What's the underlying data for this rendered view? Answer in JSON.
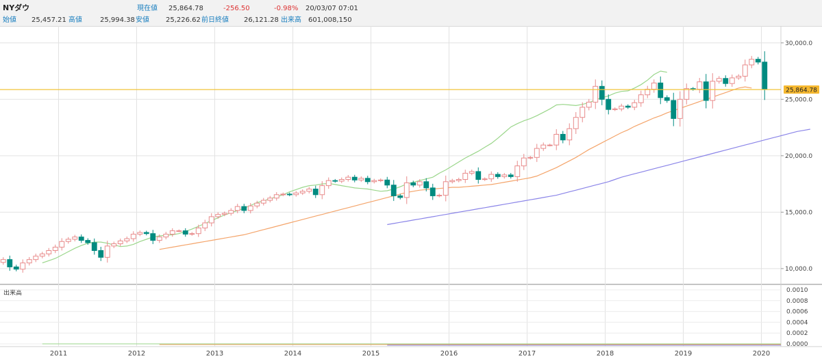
{
  "header": {
    "title": "NYダウ",
    "current_label": "現在値",
    "current_value": "25,864.78",
    "change": "-256.50",
    "change_pct": "-0.98%",
    "datetime": "20/03/07  07:01",
    "open_label": "始値",
    "open_value": "25,457.21",
    "high_label": "高値",
    "high_value": "25,994.38",
    "low_label": "安値",
    "low_value": "25,226.62",
    "prev_close_label": "前日終値",
    "prev_close_value": "26,121.28",
    "volume_label": "出来高",
    "volume_value": "601,008,150"
  },
  "colors": {
    "up": "#e88a8a",
    "down": "#008b80",
    "ma_short": "#9ad68a",
    "ma_mid": "#f4a46a",
    "ma_long": "#8a84e8",
    "current_line": "#f0c43a",
    "current_badge": "#f5b830"
  },
  "chart_data": {
    "type": "candlestick",
    "y_tick_labels": [
      "30,000.0",
      "25,000.0",
      "20,000.0",
      "15,000.0",
      "10,000.0"
    ],
    "y_ticks": [
      30000,
      25000,
      20000,
      15000,
      10000
    ],
    "ylim": [
      8600,
      31500
    ],
    "current_price": 25864.78,
    "current_price_label": "25,864.78",
    "x_tick_labels": [
      "2011",
      "2012",
      "2013",
      "2014",
      "2015",
      "2016",
      "2017",
      "2018",
      "2019",
      "2020"
    ],
    "x_ticks": [
      2011,
      2012,
      2013,
      2014,
      2015,
      2016,
      2017,
      2018,
      2019,
      2020
    ],
    "x_range": [
      2010.25,
      2020.25
    ],
    "volume_label": "出来高",
    "volume_tick_labels": [
      "0.0010",
      "0.0008",
      "0.0006",
      "0.0004",
      "0.0002",
      "0.0000"
    ],
    "volume_ticks": [
      0.001,
      0.0008,
      0.0006,
      0.0004,
      0.0002,
      0.0
    ],
    "closes": [
      10800,
      10150,
      9950,
      10500,
      10800,
      11100,
      11300,
      11600,
      11900,
      12400,
      12600,
      12800,
      12500,
      12300,
      11600,
      11000,
      12000,
      12200,
      12450,
      12650,
      13050,
      13200,
      13100,
      12500,
      12800,
      13050,
      13350,
      13350,
      13050,
      13100,
      13600,
      14050,
      14600,
      14800,
      14900,
      15150,
      15500,
      15150,
      15550,
      15800,
      16050,
      16250,
      16550,
      16600,
      16550,
      16700,
      16850,
      17050,
      16550,
      17350,
      17800,
      17750,
      17900,
      18100,
      17850,
      18000,
      17700,
      17800,
      17850,
      17400,
      16450,
      16300,
      17600,
      17400,
      17700,
      17150,
      16450,
      16500,
      17700,
      17800,
      17900,
      18450,
      18600,
      17900,
      17950,
      18350,
      18150,
      18300,
      18150,
      19100,
      19800,
      19850,
      20650,
      20950,
      20950,
      21900,
      21400,
      22400,
      23400,
      24300,
      24750,
      26150,
      25000,
      24100,
      24150,
      24400,
      24300,
      24700,
      25400,
      25900,
      26450,
      25150,
      24900,
      23300,
      25000,
      25950,
      25900,
      26550,
      24900,
      26600,
      26850,
      26400,
      26900,
      27050,
      28050,
      28550,
      28300,
      25900
    ],
    "ma_short": {
      "start": 6,
      "values": [
        10500,
        10700,
        10900,
        11200,
        11500,
        11800,
        12050,
        12250,
        12350,
        12350,
        12250,
        12100,
        11950,
        12000,
        12150,
        12400,
        12600,
        12800,
        12900,
        12950,
        13000,
        13100,
        13300,
        13500,
        13750,
        14000,
        14250,
        14500,
        14750,
        14950,
        15150,
        15350,
        15600,
        15850,
        16000,
        16200,
        16350,
        16550,
        16800,
        17000,
        17200,
        17350,
        17400,
        17500,
        17550,
        17450,
        17350,
        17250,
        17150,
        17100,
        17050,
        16950,
        16850,
        16900,
        17050,
        17250,
        17500,
        17650,
        17800,
        17950,
        18100,
        18450,
        18750,
        19100,
        19450,
        19800,
        20100,
        20400,
        20750,
        21100,
        21550,
        22050,
        22550,
        22850,
        23100,
        23300,
        23550,
        23850,
        24150,
        24500,
        24550,
        24500,
        24450,
        24550,
        24700,
        24950,
        25150,
        25300,
        25550,
        25700,
        25750,
        26000,
        26300,
        26700,
        27200,
        27500,
        27400
      ]
    },
    "ma_mid": {
      "start": 24,
      "values": [
        11700,
        11800,
        11900,
        12000,
        12100,
        12200,
        12300,
        12400,
        12500,
        12600,
        12700,
        12800,
        12900,
        13000,
        13150,
        13300,
        13450,
        13600,
        13750,
        13900,
        14050,
        14200,
        14350,
        14500,
        14650,
        14800,
        14950,
        15100,
        15250,
        15400,
        15550,
        15700,
        15850,
        16000,
        16150,
        16300,
        16450,
        16600,
        16750,
        16850,
        16950,
        17000,
        17050,
        17100,
        17150,
        17200,
        17200,
        17250,
        17300,
        17350,
        17400,
        17450,
        17550,
        17650,
        17750,
        17850,
        17950,
        18050,
        18200,
        18450,
        18700,
        18950,
        19250,
        19550,
        19850,
        20200,
        20550,
        20850,
        21150,
        21450,
        21750,
        22050,
        22300,
        22600,
        22850,
        23100,
        23350,
        23550,
        23800,
        24000,
        24200,
        24400,
        24600,
        24800,
        25000,
        25200,
        25400,
        25600,
        25800,
        26000,
        26100,
        26000
      ]
    },
    "ma_long": {
      "start": 59,
      "values": [
        13900,
        14000,
        14100,
        14200,
        14300,
        14400,
        14500,
        14600,
        14700,
        14800,
        14900,
        15000,
        15100,
        15200,
        15300,
        15400,
        15500,
        15600,
        15700,
        15800,
        15900,
        16000,
        16100,
        16200,
        16300,
        16400,
        16500,
        16650,
        16800,
        16950,
        17100,
        17250,
        17400,
        17550,
        17700,
        17900,
        18100,
        18250,
        18400,
        18550,
        18700,
        18850,
        19000,
        19150,
        19300,
        19450,
        19600,
        19750,
        19900,
        20050,
        20200,
        20350,
        20500,
        20650,
        20800,
        20950,
        21100,
        21250,
        21400,
        21550,
        21700,
        21850,
        22000,
        22150,
        22250,
        22350
      ]
    }
  }
}
